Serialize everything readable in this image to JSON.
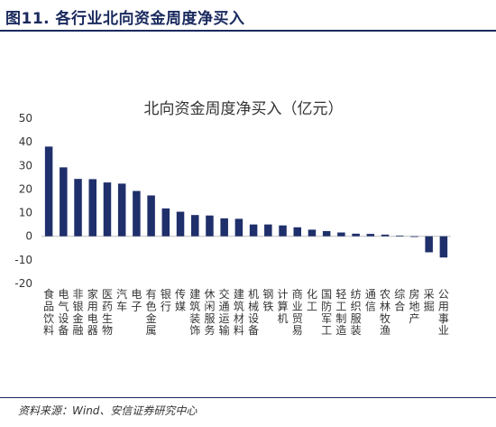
{
  "figure": {
    "label": "图11. 各行业北向资金周度净买入",
    "source": "资料来源：Wind、安信证券研究中心"
  },
  "colors": {
    "bar": "#1f2f6b",
    "rule": "#1a2a5e",
    "zero_line": "#bfbfbf"
  },
  "chart_data": {
    "type": "bar",
    "title": "北向资金周度净买入（亿元）",
    "xlabel": "",
    "ylabel": "",
    "ylim": [
      -20,
      50
    ],
    "yticks": [
      -20,
      -10,
      0,
      10,
      20,
      30,
      40,
      50
    ],
    "grid": false,
    "legend": "none",
    "categories": [
      "食品饮料",
      "电气设备",
      "非银金融",
      "家用电器",
      "医药生物",
      "汽车",
      "电子",
      "有色金属",
      "银行",
      "传媒",
      "建筑装饰",
      "休闲服务",
      "交通运输",
      "建筑材料",
      "机械设备",
      "钢铁",
      "计算机",
      "商业贸易",
      "化工",
      "国防军工",
      "轻工制造",
      "纺织服装",
      "通信",
      "农林牧渔",
      "综合",
      "房地产",
      "采掘",
      "公用事业"
    ],
    "values": [
      38.0,
      29.2,
      24.3,
      24.2,
      22.8,
      22.3,
      19.2,
      17.3,
      11.8,
      10.4,
      9.0,
      8.8,
      7.6,
      7.4,
      5.0,
      5.0,
      4.6,
      3.8,
      2.8,
      2.2,
      1.6,
      1.1,
      1.0,
      0.7,
      0.3,
      -0.2,
      -6.8,
      -9.0
    ]
  }
}
